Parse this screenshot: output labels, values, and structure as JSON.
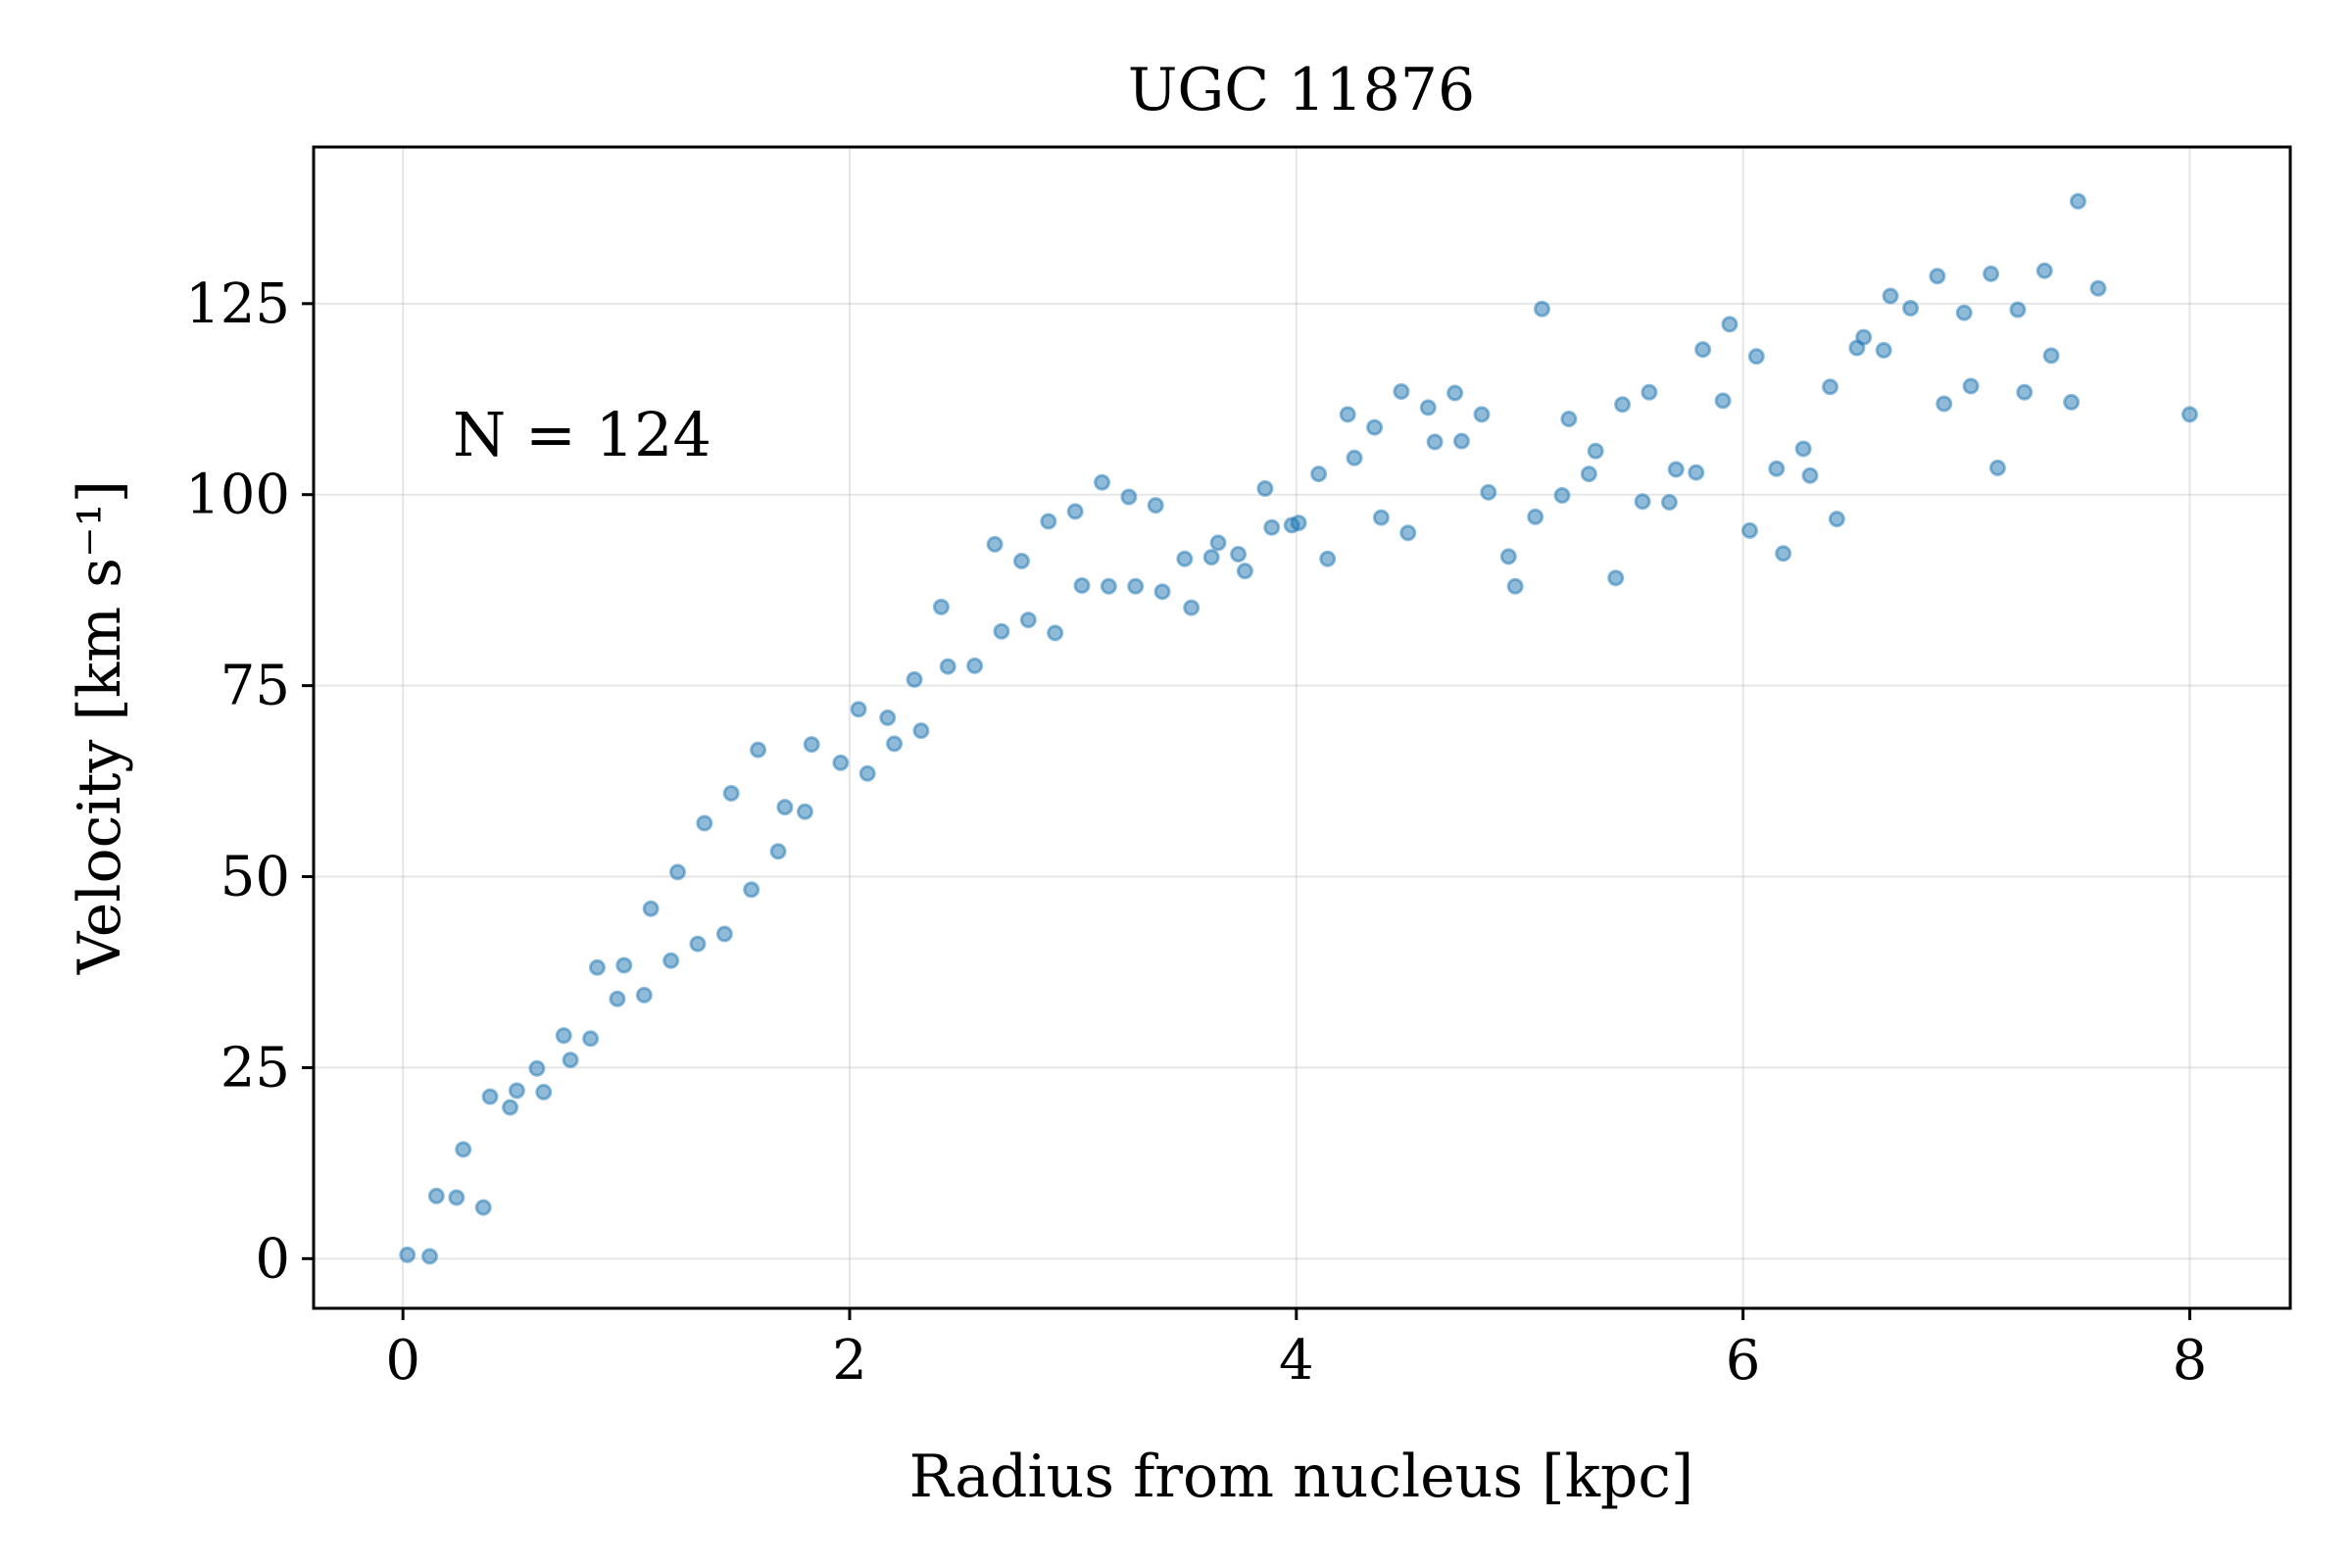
{
  "chart_data": {
    "type": "scatter",
    "title": "UGC 11876",
    "xlabel": "Radius from nucleus [kpc]",
    "ylabel": "Velocity [km s⁻¹]",
    "annotation": "N = 124",
    "xlim": [
      -0.4,
      8.45
    ],
    "ylim": [
      -6.5,
      145.5
    ],
    "xticks": [
      0,
      2,
      4,
      6,
      8
    ],
    "xtick_labels": [
      "0",
      "2",
      "4",
      "6",
      "8"
    ],
    "yticks": [
      0,
      25,
      50,
      75,
      100,
      125
    ],
    "ytick_labels": [
      "0",
      "25",
      "50",
      "75",
      "100",
      "125"
    ],
    "grid": true,
    "marker_color": "#1f77b4",
    "series": [
      {
        "x": [
          0.02,
          0.12,
          0.15,
          0.24,
          0.27,
          0.36,
          0.39,
          0.48,
          0.51,
          0.6,
          0.63,
          0.72,
          0.75,
          0.84,
          0.87,
          0.96,
          0.99,
          1.08,
          1.11,
          1.2,
          1.23,
          1.32,
          1.35,
          1.44,
          1.47,
          1.56,
          1.59,
          1.68,
          1.71,
          1.8,
          1.83,
          1.96,
          2.04,
          2.08,
          2.17,
          2.2,
          2.29,
          2.32,
          2.41,
          2.44,
          2.56,
          2.65,
          2.68,
          2.77,
          2.8,
          2.89,
          2.92,
          3.01,
          3.04,
          3.13,
          3.16,
          3.25,
          3.28,
          3.37,
          3.4,
          3.5,
          3.53,
          3.62,
          3.65,
          3.74,
          3.77,
          3.86,
          3.89,
          3.98,
          4.01,
          4.1,
          4.14,
          4.23,
          4.26,
          4.35,
          4.38,
          4.47,
          4.5,
          4.59,
          4.62,
          4.71,
          4.74,
          4.83,
          4.86,
          4.95,
          4.98,
          5.07,
          5.1,
          5.19,
          5.22,
          5.31,
          5.34,
          5.43,
          5.46,
          5.55,
          5.58,
          5.67,
          5.7,
          5.79,
          5.82,
          5.91,
          5.94,
          6.03,
          6.06,
          6.15,
          6.18,
          6.27,
          6.3,
          6.39,
          6.42,
          6.51,
          6.54,
          6.63,
          6.66,
          6.75,
          6.87,
          6.9,
          6.99,
          7.02,
          7.11,
          7.14,
          7.23,
          7.26,
          7.35,
          7.38,
          7.47,
          7.5,
          7.59,
          8.0
        ],
        "y": [
          0.5,
          0.3,
          8.2,
          8.0,
          14.3,
          6.7,
          21.2,
          19.8,
          22.0,
          24.9,
          21.8,
          29.2,
          26.0,
          28.8,
          38.1,
          34.0,
          38.4,
          34.5,
          45.8,
          39.0,
          50.6,
          41.2,
          57.0,
          42.5,
          60.9,
          48.3,
          66.6,
          53.3,
          59.1,
          58.5,
          67.3,
          64.9,
          71.9,
          63.5,
          70.8,
          67.4,
          75.8,
          69.1,
          85.3,
          77.5,
          77.6,
          93.5,
          82.1,
          91.3,
          83.6,
          96.5,
          81.9,
          97.8,
          88.1,
          101.6,
          88.0,
          99.7,
          88.0,
          98.6,
          87.3,
          91.6,
          85.2,
          91.8,
          93.7,
          92.2,
          90.0,
          100.8,
          95.7,
          96.0,
          96.3,
          102.7,
          91.6,
          110.5,
          104.8,
          108.8,
          97.0,
          113.5,
          95.0,
          111.4,
          106.9,
          113.3,
          107.0,
          110.5,
          100.3,
          91.9,
          88.0,
          97.1,
          124.3,
          99.9,
          109.9,
          102.7,
          105.7,
          89.1,
          111.8,
          99.1,
          113.4,
          99.0,
          103.3,
          102.9,
          119.0,
          112.3,
          122.3,
          95.3,
          118.1,
          103.4,
          92.3,
          106.0,
          102.5,
          114.1,
          96.8,
          119.2,
          120.6,
          118.9,
          126.0,
          124.4,
          128.6,
          111.9,
          123.8,
          114.2,
          128.9,
          103.5,
          124.2,
          113.4,
          129.3,
          118.2,
          112.1,
          138.4,
          127.0,
          110.5
        ]
      }
    ]
  }
}
